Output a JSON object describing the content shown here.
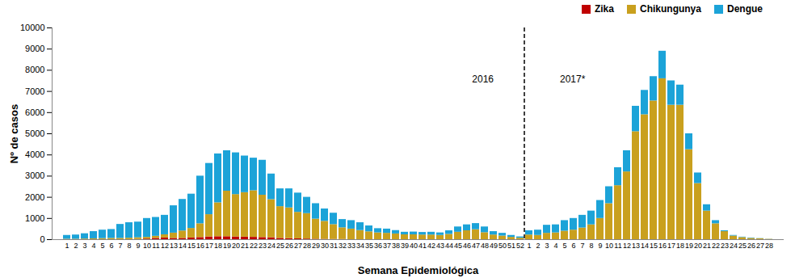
{
  "chart_data": {
    "type": "bar",
    "stacked": true,
    "grid": false,
    "legend": "top-right",
    "x_label": "Semana Epidemiológica",
    "y_label": "Nº de casos",
    "annotations": [
      "2016",
      "2017*"
    ],
    "categories": [
      "1",
      "2",
      "3",
      "4",
      "5",
      "6",
      "7",
      "8",
      "9",
      "10",
      "11",
      "12",
      "13",
      "14",
      "15",
      "16",
      "17",
      "18",
      "19",
      "20",
      "21",
      "22",
      "23",
      "24",
      "25",
      "26",
      "27",
      "28",
      "29",
      "30",
      "31",
      "32",
      "33",
      "34",
      "35",
      "36",
      "37",
      "38",
      "39",
      "40",
      "41",
      "42",
      "43",
      "44",
      "45",
      "46",
      "47",
      "48",
      "49",
      "50",
      "51",
      "52",
      "1",
      "2",
      "3",
      "4",
      "5",
      "6",
      "7",
      "8",
      "9",
      "10",
      "11",
      "12",
      "13",
      "14",
      "15",
      "16",
      "17",
      "18",
      "19",
      "20",
      "21",
      "22",
      "23",
      "24",
      "25",
      "26",
      "27",
      "28"
    ],
    "ylim": [
      0,
      10000
    ],
    "yticks": [
      0,
      1000,
      2000,
      3000,
      4000,
      5000,
      6000,
      7000,
      8000,
      9000,
      10000
    ],
    "series": [
      {
        "name": "Zika",
        "color": "#c00000",
        "values": [
          0,
          0,
          0,
          0,
          0,
          0,
          0,
          0,
          10,
          30,
          60,
          80,
          60,
          60,
          80,
          100,
          130,
          140,
          140,
          130,
          120,
          110,
          100,
          90,
          60,
          50,
          40,
          30,
          20,
          15,
          10,
          10,
          0,
          0,
          0,
          0,
          0,
          0,
          0,
          0,
          0,
          0,
          0,
          0,
          0,
          0,
          0,
          0,
          0,
          0,
          0,
          0,
          0,
          0,
          0,
          0,
          0,
          0,
          0,
          0,
          0,
          0,
          0,
          0,
          0,
          0,
          0,
          0,
          0,
          0,
          0,
          0,
          0,
          0,
          0,
          0,
          0,
          0,
          0,
          0
        ]
      },
      {
        "name": "Chikungunya",
        "color": "#c9a01e",
        "values": [
          20,
          20,
          30,
          40,
          50,
          60,
          60,
          70,
          80,
          80,
          100,
          150,
          250,
          350,
          450,
          650,
          1050,
          1600,
          2150,
          2000,
          2100,
          2200,
          2000,
          1800,
          1500,
          1450,
          1250,
          1200,
          950,
          850,
          700,
          550,
          500,
          430,
          370,
          320,
          300,
          270,
          230,
          230,
          220,
          220,
          200,
          250,
          350,
          420,
          470,
          330,
          220,
          170,
          110,
          70,
          220,
          200,
          300,
          320,
          400,
          450,
          550,
          700,
          1000,
          1700,
          2550,
          3200,
          5100,
          5900,
          6550,
          7600,
          6350,
          6350,
          4250,
          2650,
          1350,
          750,
          380,
          170,
          100,
          60,
          40,
          15
        ]
      },
      {
        "name": "Dengue",
        "color": "#1ca3d8",
        "values": [
          180,
          200,
          250,
          340,
          400,
          420,
          660,
          730,
          740,
          890,
          890,
          920,
          1290,
          1490,
          1620,
          2250,
          2420,
          2310,
          1910,
          1970,
          1730,
          1540,
          1650,
          1210,
          840,
          900,
          910,
          770,
          730,
          585,
          540,
          390,
          400,
          370,
          280,
          200,
          200,
          160,
          120,
          130,
          120,
          130,
          120,
          170,
          250,
          280,
          290,
          270,
          160,
          130,
          90,
          60,
          200,
          250,
          380,
          380,
          500,
          550,
          600,
          650,
          850,
          800,
          850,
          1000,
          1200,
          1150,
          1150,
          1300,
          1150,
          950,
          750,
          500,
          300,
          150,
          40,
          30,
          20,
          20,
          10,
          5
        ]
      }
    ]
  }
}
